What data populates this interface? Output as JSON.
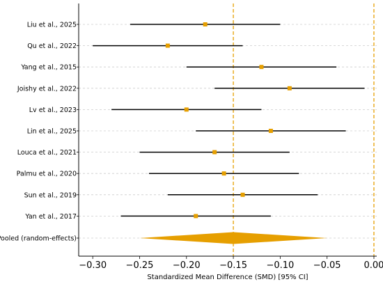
{
  "chart_data": {
    "type": "forest",
    "title": "",
    "xlabel": "Standardized Mean Difference (SMD) [95% CI]",
    "ylabel": "",
    "xlim": [
      -0.315,
      0.003
    ],
    "xticks": [
      -0.3,
      -0.25,
      -0.2,
      -0.15,
      -0.1,
      -0.05,
      0.0
    ],
    "xtick_labels": [
      "−0.30",
      "−0.25",
      "−0.20",
      "−0.15",
      "−0.10",
      "−0.05",
      "0.00"
    ],
    "grid": "horizontal dashed",
    "studies": [
      {
        "label": "Liu et al., 2025",
        "smd": -0.18,
        "ci_low": -0.26,
        "ci_high": -0.1
      },
      {
        "label": "Qu et al., 2022",
        "smd": -0.22,
        "ci_low": -0.3,
        "ci_high": -0.14
      },
      {
        "label": "Yang et al., 2015",
        "smd": -0.12,
        "ci_low": -0.2,
        "ci_high": -0.04
      },
      {
        "label": "Joishy et al., 2022",
        "smd": -0.09,
        "ci_low": -0.17,
        "ci_high": -0.01
      },
      {
        "label": "Lv et al., 2023",
        "smd": -0.2,
        "ci_low": -0.28,
        "ci_high": -0.12
      },
      {
        "label": "Lin et al., 2025",
        "smd": -0.11,
        "ci_low": -0.19,
        "ci_high": -0.03
      },
      {
        "label": "Louca et al., 2021",
        "smd": -0.17,
        "ci_low": -0.25,
        "ci_high": -0.09
      },
      {
        "label": "Palmu et al., 2020",
        "smd": -0.16,
        "ci_low": -0.24,
        "ci_high": -0.08
      },
      {
        "label": "Sun et al., 2019",
        "smd": -0.14,
        "ci_low": -0.22,
        "ci_high": -0.06
      },
      {
        "label": "Yan et al., 2017",
        "smd": -0.19,
        "ci_low": -0.27,
        "ci_high": -0.11
      }
    ],
    "pooled": {
      "label": "Pooled (random-effects)",
      "smd": -0.15,
      "ci_low": -0.25,
      "ci_high": -0.05
    },
    "reference_lines": [
      -0.15,
      0.0
    ],
    "colors": {
      "marker": "#e69f00",
      "reference": "#e69f00",
      "ci_line": "#000000",
      "grid": "#cccccc"
    }
  }
}
